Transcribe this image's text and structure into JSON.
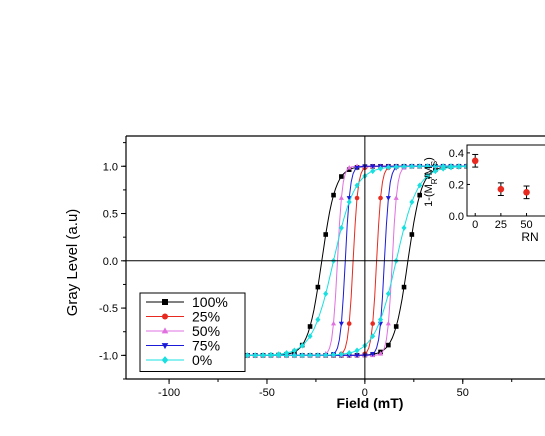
{
  "chart_data": {
    "type": "line",
    "xlabel": "Field (mT)",
    "ylabel": "Gray Level (a.u)",
    "xlim": [
      -122,
      92
    ],
    "ylim": [
      -1.25,
      1.32
    ],
    "x_ticks": [
      -100,
      -50,
      0,
      50
    ],
    "y_ticks": [
      -1.0,
      -0.5,
      0.0,
      0.5,
      1.0
    ],
    "x_tick_labels": [
      "-100",
      "-50",
      "0",
      "50"
    ],
    "y_tick_labels": [
      "-1.0",
      "-0.5",
      "0.0",
      "0.5",
      "1.0"
    ],
    "zero_lines": true,
    "legend_position": "bottom-left",
    "series": [
      {
        "name": "100%",
        "color": "#000000",
        "marker": "square",
        "Hc_desc": -22,
        "Hc_asc": 22,
        "width": 7
      },
      {
        "name": "25%",
        "color": "#e8291f",
        "marker": "circle",
        "Hc_desc": -6,
        "Hc_asc": 6,
        "width": 2.5
      },
      {
        "name": "50%",
        "color": "#e070e0",
        "marker": "triangle-up",
        "Hc_desc": -14,
        "Hc_asc": 14,
        "width": 2.5
      },
      {
        "name": "75%",
        "color": "#1a1ad8",
        "marker": "triangle-down",
        "Hc_desc": -10,
        "Hc_asc": 10,
        "width": 2.5
      },
      {
        "name": "0%",
        "color": "#18e0e0",
        "marker": "diamond",
        "Hc_desc": -16,
        "Hc_asc": 16,
        "width": 11
      }
    ],
    "inset": {
      "type": "scatter",
      "xlabel": "RN",
      "ylabel": "1-(M_R/M_S)",
      "ylabel_parts": [
        "1-(M",
        "R",
        "/M",
        "S",
        ")"
      ],
      "x_tick_labels": [
        "0",
        "25",
        "50"
      ],
      "y_tick_labels": [
        "0.0",
        "0.2",
        "0.4"
      ],
      "x_ticks": [
        0,
        25,
        50
      ],
      "y_ticks": [
        0.0,
        0.2,
        0.4
      ],
      "xlim": [
        -8,
        68
      ],
      "ylim": [
        0,
        0.45
      ],
      "marker_color": "#e8291f",
      "points": [
        {
          "x": 0,
          "y": 0.35,
          "err": 0.04
        },
        {
          "x": 25,
          "y": 0.17,
          "err": 0.04
        },
        {
          "x": 50,
          "y": 0.15,
          "err": 0.04
        }
      ]
    }
  }
}
